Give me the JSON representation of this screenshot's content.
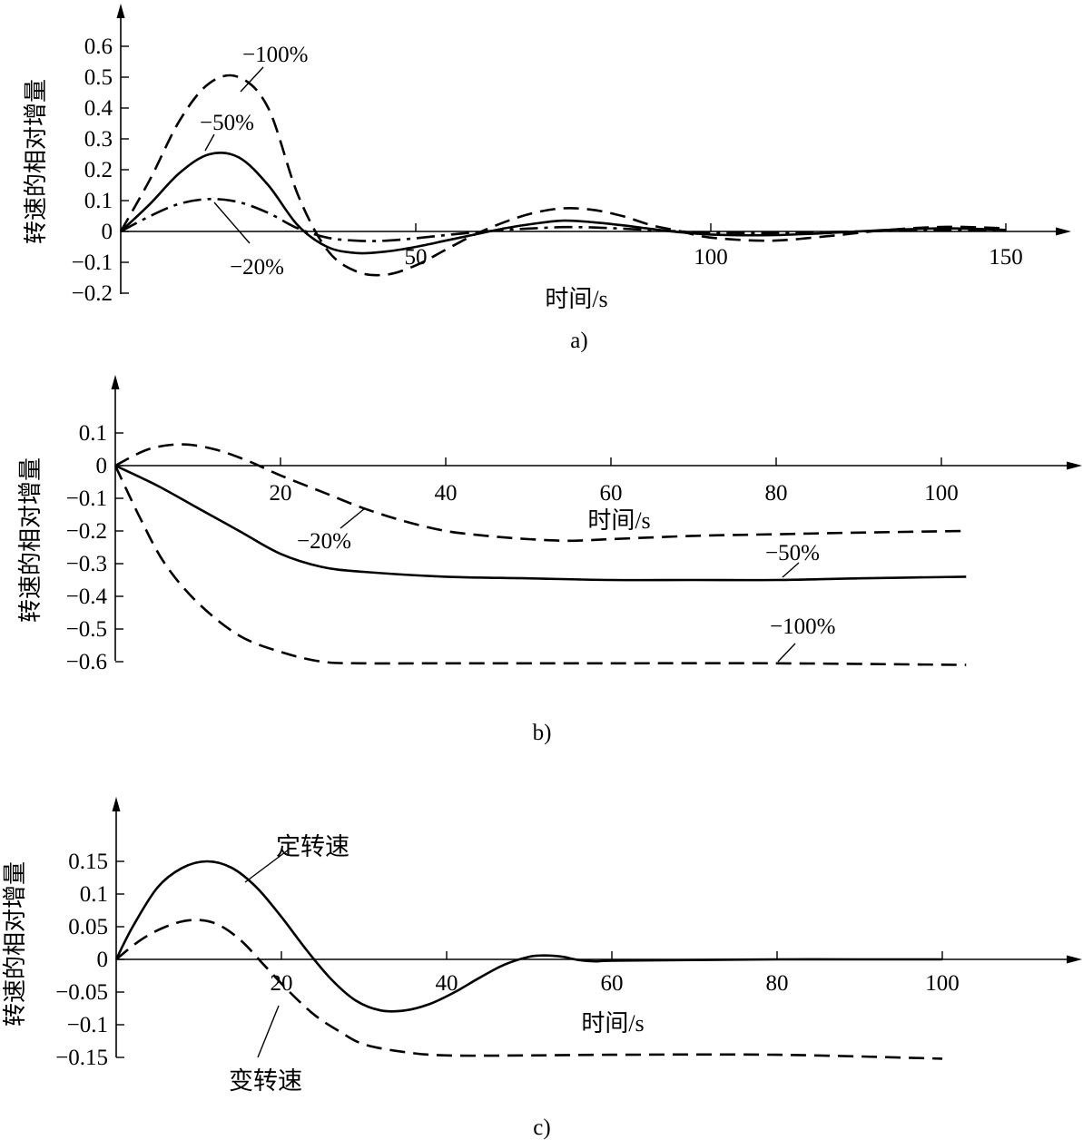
{
  "chart_data": [
    {
      "type": "line",
      "panel_label": "a)",
      "xlabel": "时间/s",
      "ylabel": "转速的相对增量",
      "xlim": [
        0,
        160
      ],
      "ylim": [
        -0.2,
        0.7
      ],
      "x_ticks": [
        50,
        100,
        150
      ],
      "y_ticks": [
        -0.2,
        -0.1,
        0,
        0.1,
        0.2,
        0.3,
        0.4,
        0.5,
        0.6
      ],
      "y_tick_labels": [
        "-0.2",
        "-0.1",
        "0",
        "0.1",
        "0.2",
        "0.3",
        "0.4",
        "0.5",
        "0.6"
      ],
      "series": [
        {
          "name": "−100%",
          "style": "dashed",
          "x": [
            0,
            5,
            10,
            15,
            20,
            25,
            30,
            35,
            40,
            45,
            50,
            55,
            60,
            65,
            70,
            75,
            80,
            85,
            90,
            95,
            100,
            110,
            120,
            130,
            140,
            150
          ],
          "y": [
            0,
            0.17,
            0.36,
            0.48,
            0.5,
            0.4,
            0.12,
            -0.06,
            -0.13,
            -0.14,
            -0.11,
            -0.06,
            -0.01,
            0.03,
            0.06,
            0.075,
            0.07,
            0.05,
            0.02,
            0,
            -0.02,
            -0.03,
            -0.015,
            0.005,
            0.015,
            0.01
          ]
        },
        {
          "name": "−50%",
          "style": "solid",
          "x": [
            0,
            5,
            10,
            15,
            20,
            25,
            30,
            35,
            40,
            45,
            50,
            55,
            60,
            65,
            70,
            75,
            80,
            85,
            90,
            95,
            100,
            110,
            120,
            130,
            140,
            150
          ],
          "y": [
            0,
            0.09,
            0.19,
            0.25,
            0.24,
            0.15,
            0.02,
            -0.05,
            -0.07,
            -0.065,
            -0.05,
            -0.03,
            -0.01,
            0.01,
            0.025,
            0.035,
            0.03,
            0.02,
            0.008,
            -0.003,
            -0.01,
            -0.012,
            -0.005,
            0.005,
            0.01,
            0.005
          ]
        },
        {
          "name": "−20%",
          "style": "dashdot",
          "x": [
            0,
            5,
            10,
            15,
            20,
            25,
            30,
            35,
            40,
            45,
            50,
            55,
            60,
            65,
            70,
            75,
            80,
            85,
            90,
            95,
            100,
            110,
            120,
            130,
            140,
            150
          ],
          "y": [
            0,
            0.05,
            0.09,
            0.105,
            0.095,
            0.06,
            0.01,
            -0.02,
            -0.03,
            -0.03,
            -0.022,
            -0.012,
            -0.003,
            0.005,
            0.01,
            0.014,
            0.013,
            0.009,
            0.004,
            0,
            -0.004,
            -0.005,
            -0.002,
            0.002,
            0.004,
            0.002
          ]
        }
      ]
    },
    {
      "type": "line",
      "panel_label": "b)",
      "xlabel": "时间/s",
      "ylabel": "转速的相对增量",
      "xlim": [
        0,
        115
      ],
      "ylim": [
        -0.6,
        0.2
      ],
      "x_ticks": [
        20,
        40,
        60,
        80,
        100
      ],
      "y_ticks": [
        -0.6,
        -0.5,
        -0.4,
        -0.3,
        -0.2,
        -0.1,
        0,
        0.1
      ],
      "y_tick_labels": [
        "-0.6",
        "-0.5",
        "-0.4",
        "-0.3",
        "-0.2",
        "-0.1",
        "0",
        "0.1"
      ],
      "series": [
        {
          "name": "−20%",
          "style": "dashed",
          "x": [
            0,
            4,
            8,
            12,
            16,
            20,
            25,
            30,
            35,
            40,
            45,
            50,
            55,
            60,
            70,
            80,
            90,
            103
          ],
          "y": [
            0,
            0.05,
            0.065,
            0.05,
            0.015,
            -0.03,
            -0.08,
            -0.13,
            -0.17,
            -0.2,
            -0.215,
            -0.225,
            -0.23,
            -0.225,
            -0.215,
            -0.21,
            -0.205,
            -0.2
          ]
        },
        {
          "name": "−50%",
          "style": "solid",
          "x": [
            0,
            5,
            10,
            15,
            20,
            25,
            30,
            40,
            50,
            60,
            70,
            80,
            90,
            103
          ],
          "y": [
            0,
            -0.06,
            -0.13,
            -0.2,
            -0.27,
            -0.31,
            -0.325,
            -0.34,
            -0.345,
            -0.35,
            -0.35,
            -0.35,
            -0.345,
            -0.34
          ]
        },
        {
          "name": "−100%",
          "style": "dashed",
          "x": [
            0,
            3,
            6,
            10,
            15,
            20,
            25,
            30,
            40,
            50,
            60,
            80,
            103
          ],
          "y": [
            0,
            -0.16,
            -0.3,
            -0.42,
            -0.52,
            -0.57,
            -0.6,
            -0.605,
            -0.605,
            -0.605,
            -0.605,
            -0.605,
            -0.61
          ]
        }
      ]
    },
    {
      "type": "line",
      "panel_label": "c)",
      "xlabel": "时间/s",
      "ylabel": "转速的相对增量",
      "xlim": [
        0,
        117
      ],
      "ylim": [
        -0.15,
        0.23
      ],
      "x_ticks": [
        20,
        40,
        60,
        80,
        100
      ],
      "y_ticks": [
        -0.15,
        -0.1,
        -0.05,
        0,
        0.05,
        0.1,
        0.15
      ],
      "y_tick_labels": [
        "-0.15",
        "-0.1",
        "-0.05",
        "0",
        "0.05",
        "0.1",
        "0.15"
      ],
      "series": [
        {
          "name": "定转速",
          "style": "solid",
          "x": [
            0,
            2,
            5,
            8,
            11,
            14,
            17,
            20,
            23,
            26,
            29,
            32,
            35,
            38,
            41,
            44,
            47,
            50,
            52,
            54,
            56,
            58,
            60,
            70,
            80,
            90,
            100
          ],
          "y": [
            0,
            0.05,
            0.11,
            0.14,
            0.15,
            0.14,
            0.11,
            0.065,
            0.015,
            -0.03,
            -0.063,
            -0.078,
            -0.078,
            -0.068,
            -0.05,
            -0.028,
            -0.008,
            0.004,
            0.006,
            0.004,
            -0.001,
            -0.003,
            -0.002,
            -0.001,
            0,
            0,
            0
          ]
        },
        {
          "name": "变转速",
          "style": "dashed",
          "x": [
            0,
            3,
            6,
            9,
            12,
            15,
            18,
            21,
            24,
            27,
            30,
            35,
            40,
            50,
            60,
            80,
            100
          ],
          "y": [
            0,
            0.03,
            0.05,
            0.06,
            0.055,
            0.03,
            -0.01,
            -0.05,
            -0.085,
            -0.11,
            -0.13,
            -0.142,
            -0.147,
            -0.147,
            -0.146,
            -0.146,
            -0.152
          ]
        }
      ]
    }
  ]
}
